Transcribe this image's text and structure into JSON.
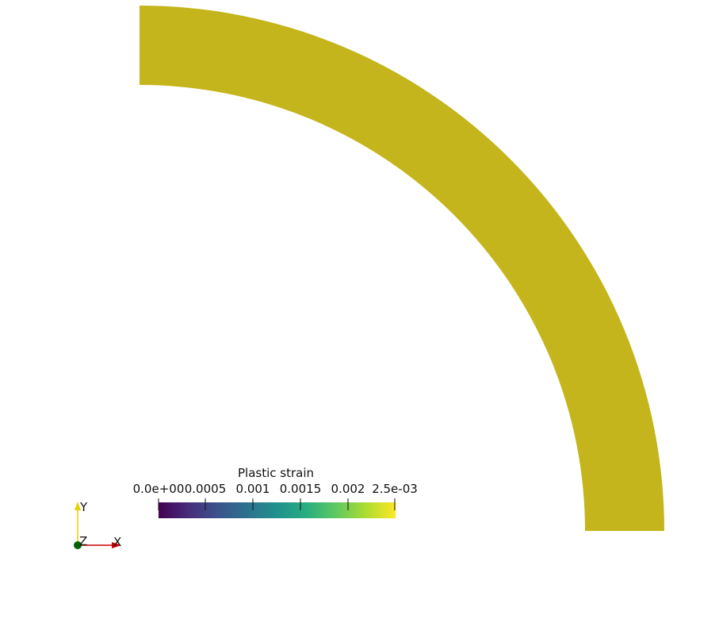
{
  "scene": {
    "background_color": "#ffffff",
    "body_color": "#c5b51c"
  },
  "colorbar": {
    "title": "Plastic strain",
    "colormap": "viridis",
    "range": [
      0,
      0.0025
    ],
    "ticks": [
      "0.0e+00",
      "0.0005",
      "0.001",
      "0.0015",
      "0.002",
      "2.5e-03"
    ]
  },
  "orientation_axes": {
    "x_label": "X",
    "y_label": "Y",
    "z_label": "Z",
    "x_color": "#cc0000",
    "y_color": "#e5d000",
    "z_color": "#006400"
  }
}
